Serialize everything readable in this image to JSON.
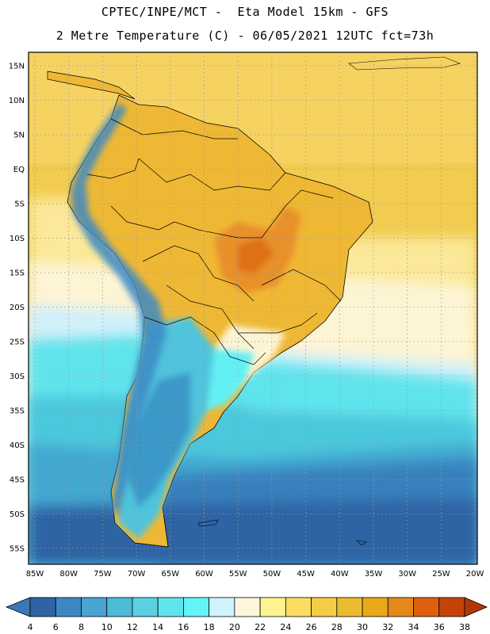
{
  "header": {
    "line1": "CPTEC/INPE/MCT -  Eta Model 15km - GFS",
    "line2": "2 Metre Temperature (C) - 06/05/2021 12UTC fct=73h"
  },
  "map": {
    "lat_labels": [
      "15N",
      "10N",
      "5N",
      "EQ",
      "5S",
      "10S",
      "15S",
      "20S",
      "25S",
      "30S",
      "35S",
      "40S",
      "45S",
      "50S",
      "55S"
    ],
    "lon_labels": [
      "85W",
      "80W",
      "75W",
      "70W",
      "65W",
      "60W",
      "55W",
      "50W",
      "45W",
      "40W",
      "35W",
      "30W",
      "25W",
      "20W"
    ],
    "colors": {
      "ocean_warm": "#f4d060",
      "land_warm": "#edb830",
      "hot": "#e8882a",
      "cool_ocean": "#5cdce8",
      "cold_ocean": "#2e64a4",
      "andes": "#3c8cc4",
      "border": "#000000",
      "grid": "#9a9a9a"
    }
  },
  "colorbar": {
    "labels": [
      "4",
      "6",
      "8",
      "10",
      "12",
      "14",
      "16",
      "18",
      "20",
      "22",
      "24",
      "26",
      "28",
      "30",
      "32",
      "34",
      "36",
      "38"
    ],
    "colors": [
      "#3c78b8",
      "#2e64a4",
      "#3c88c4",
      "#48a4d0",
      "#4cbcd8",
      "#5ad0e0",
      "#60e4ec",
      "#64f4f8",
      "#d0f4fc",
      "#fdf6dc",
      "#fcf490",
      "#fcdc60",
      "#f4cc48",
      "#ecbc30",
      "#e8a818",
      "#e4881c",
      "#dc6010",
      "#c44408",
      "#b03808"
    ]
  }
}
